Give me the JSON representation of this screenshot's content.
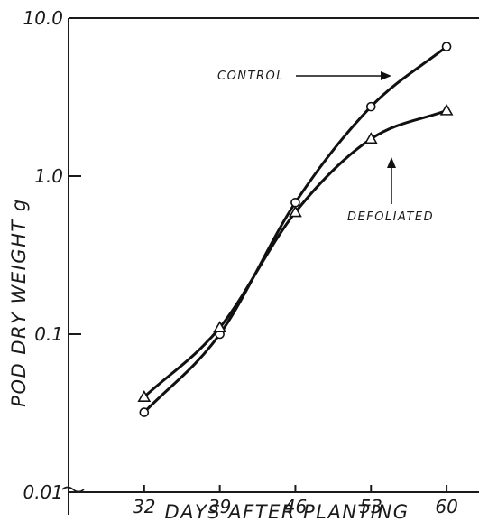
{
  "chart_data": {
    "type": "line",
    "y_scale": "log",
    "x": [
      32,
      39,
      46,
      53,
      60
    ],
    "xlim": [
      25,
      63
    ],
    "ylim": [
      0.01,
      10.0
    ],
    "xlabel": "DAYS AFTER PLANTING",
    "ylabel": "POD DRY WEIGHT g",
    "xticks": [
      "32",
      "39",
      "46",
      "53",
      "60"
    ],
    "yticks": [
      {
        "value": 0.01,
        "label": "0.01"
      },
      {
        "value": 0.1,
        "label": "0.1"
      },
      {
        "value": 1.0,
        "label": "1.0"
      },
      {
        "value": 10.0,
        "label": "10.0"
      }
    ],
    "grid": false,
    "series": [
      {
        "name": "CONTROL",
        "marker": "circle",
        "values": [
          0.032,
          0.1,
          0.68,
          2.75,
          6.6
        ]
      },
      {
        "name": "DEFOLIATED",
        "marker": "triangle",
        "values": [
          0.04,
          0.11,
          0.59,
          1.72,
          2.6
        ]
      }
    ],
    "annotations": [
      {
        "text": "CONTROL",
        "series": "CONTROL",
        "arrow": "right"
      },
      {
        "text": "DEFOLIATED",
        "series": "DEFOLIATED",
        "arrow": "up"
      }
    ]
  }
}
